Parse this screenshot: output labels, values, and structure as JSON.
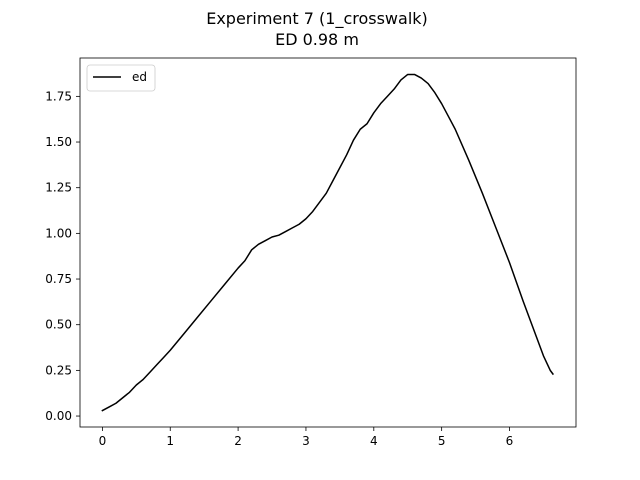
{
  "chart_data": {
    "type": "line",
    "title": "Experiment 7 (1_crosswalk)",
    "subtitle": "ED 0.98 m",
    "xlabel": "",
    "ylabel": "",
    "xlim": [
      -0.33,
      6.98
    ],
    "ylim": [
      -0.06,
      1.96
    ],
    "xticks": [
      0,
      1,
      2,
      3,
      4,
      5,
      6
    ],
    "xtick_labels": [
      "0",
      "1",
      "2",
      "3",
      "4",
      "5",
      "6"
    ],
    "yticks": [
      0.0,
      0.25,
      0.5,
      0.75,
      1.0,
      1.25,
      1.5,
      1.75
    ],
    "ytick_labels": [
      "0.00",
      "0.25",
      "0.50",
      "0.75",
      "1.00",
      "1.25",
      "1.50",
      "1.75"
    ],
    "grid": false,
    "legend_position": "upper-left",
    "series": [
      {
        "name": "ed",
        "color": "#000000",
        "x": [
          0.0,
          0.1,
          0.2,
          0.3,
          0.4,
          0.5,
          0.6,
          0.7,
          0.8,
          0.9,
          1.0,
          1.2,
          1.4,
          1.6,
          1.8,
          2.0,
          2.1,
          2.2,
          2.3,
          2.4,
          2.5,
          2.6,
          2.7,
          2.8,
          2.9,
          3.0,
          3.1,
          3.2,
          3.3,
          3.4,
          3.5,
          3.6,
          3.7,
          3.8,
          3.9,
          4.0,
          4.1,
          4.2,
          4.3,
          4.4,
          4.5,
          4.6,
          4.7,
          4.8,
          4.9,
          5.0,
          5.1,
          5.2,
          5.4,
          5.6,
          5.8,
          6.0,
          6.2,
          6.4,
          6.5,
          6.6,
          6.64
        ],
        "y": [
          0.03,
          0.05,
          0.07,
          0.1,
          0.13,
          0.17,
          0.2,
          0.24,
          0.28,
          0.32,
          0.36,
          0.45,
          0.54,
          0.63,
          0.72,
          0.81,
          0.85,
          0.91,
          0.94,
          0.96,
          0.98,
          0.99,
          1.01,
          1.03,
          1.05,
          1.08,
          1.12,
          1.17,
          1.22,
          1.29,
          1.36,
          1.43,
          1.51,
          1.57,
          1.6,
          1.66,
          1.71,
          1.75,
          1.79,
          1.84,
          1.87,
          1.87,
          1.85,
          1.82,
          1.77,
          1.71,
          1.64,
          1.57,
          1.4,
          1.22,
          1.03,
          0.84,
          0.63,
          0.43,
          0.33,
          0.25,
          0.23
        ]
      }
    ]
  }
}
